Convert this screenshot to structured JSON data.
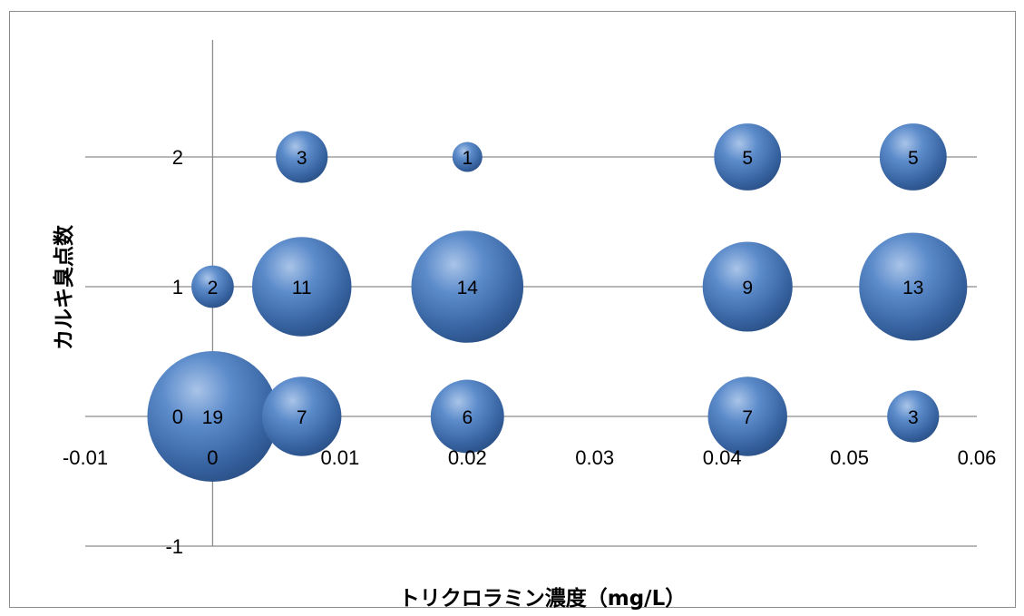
{
  "chart_data": {
    "type": "bubble",
    "xlabel": "トリクロラミン濃度（mg/L）",
    "ylabel": "カルキ臭点数",
    "xlim": [
      -0.01,
      0.06
    ],
    "ylim": [
      -1,
      3
    ],
    "x_ticks": [
      "-0.01",
      "0",
      "0.01",
      "0.02",
      "0.03",
      "0.04",
      "0.05",
      "0.06"
    ],
    "y_ticks": [
      "-1",
      "0",
      "1",
      "2"
    ],
    "grid": "horizontal",
    "bubble_color": "#4f81bd",
    "points": [
      {
        "x": 0,
        "y": 0,
        "size": 19,
        "label": "19"
      },
      {
        "x": 0.007,
        "y": 0,
        "size": 7,
        "label": "7"
      },
      {
        "x": 0.02,
        "y": 0,
        "size": 6,
        "label": "6"
      },
      {
        "x": 0.042,
        "y": 0,
        "size": 7,
        "label": "7"
      },
      {
        "x": 0.055,
        "y": 0,
        "size": 3,
        "label": "3"
      },
      {
        "x": 0,
        "y": 1,
        "size": 2,
        "label": "2"
      },
      {
        "x": 0.007,
        "y": 1,
        "size": 11,
        "label": "11"
      },
      {
        "x": 0.02,
        "y": 1,
        "size": 14,
        "label": "14"
      },
      {
        "x": 0.042,
        "y": 1,
        "size": 9,
        "label": "9"
      },
      {
        "x": 0.055,
        "y": 1,
        "size": 13,
        "label": "13"
      },
      {
        "x": 0.007,
        "y": 2,
        "size": 3,
        "label": "3"
      },
      {
        "x": 0.02,
        "y": 2,
        "size": 1,
        "label": "1"
      },
      {
        "x": 0.042,
        "y": 2,
        "size": 5,
        "label": "5"
      },
      {
        "x": 0.055,
        "y": 2,
        "size": 5,
        "label": "5"
      }
    ]
  }
}
